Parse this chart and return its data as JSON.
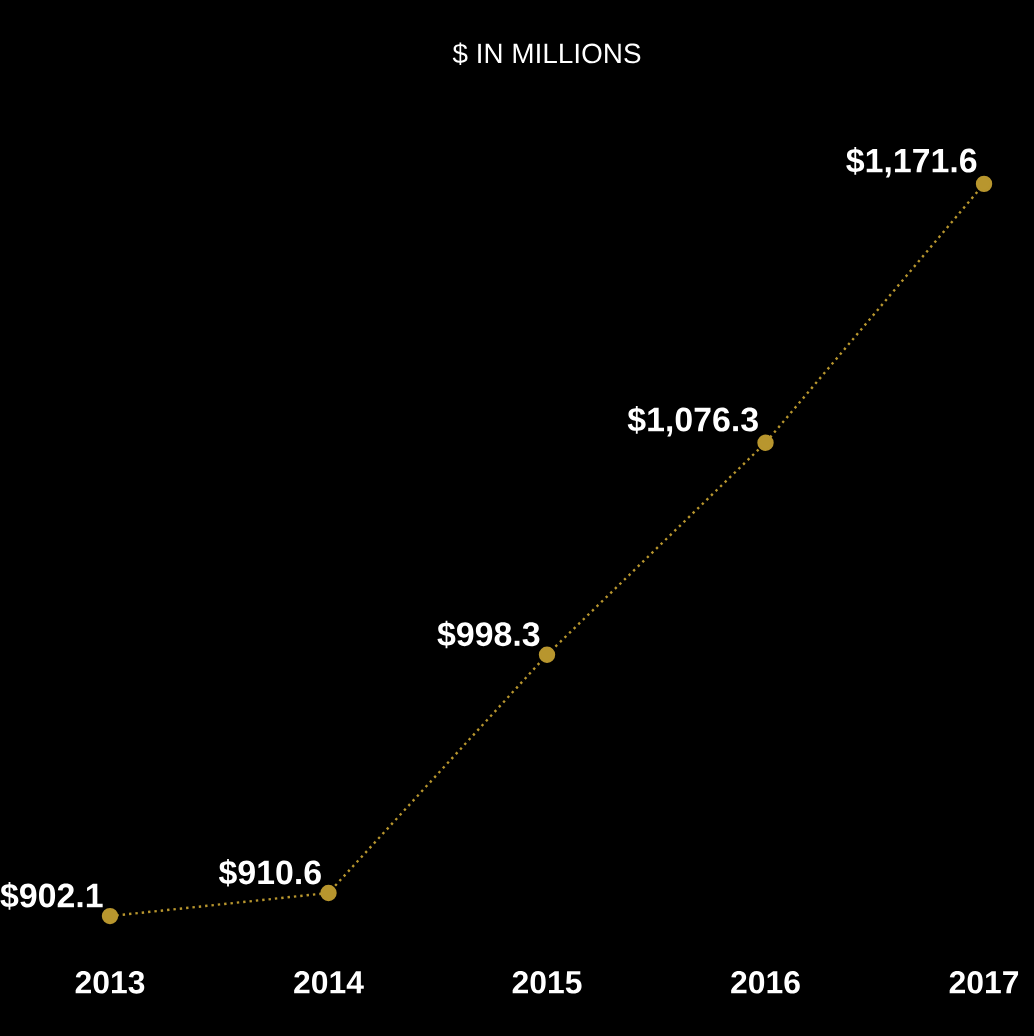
{
  "chart_data": {
    "type": "line",
    "title": "$ IN MILLIONS",
    "categories": [
      "2013",
      "2014",
      "2015",
      "2016",
      "2017"
    ],
    "series": [
      {
        "color": "#b8962e",
        "values": [
          902.1,
          910.6,
          998.3,
          1076.3,
          1171.6
        ],
        "value_labels": [
          "$902.1",
          "$910.6",
          "$998.3",
          "$1,076.3",
          "$1,171.6"
        ]
      }
    ],
    "marker": "circle",
    "line_style": "dotted",
    "grid": false
  }
}
